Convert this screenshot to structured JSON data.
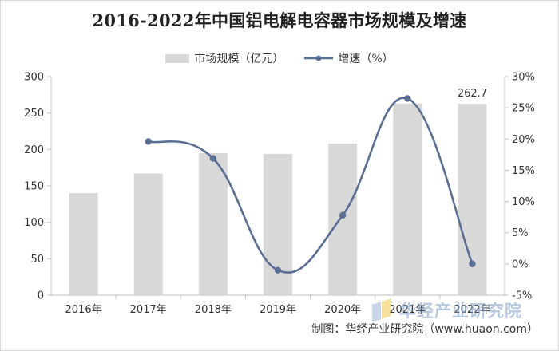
{
  "title": "2016-2022年中国铝电解电容器市场规模及增速",
  "legend": {
    "bar_label": "市场规模（亿元）",
    "line_label": "增速（%）"
  },
  "footer": "制图：华经产业研究院（www.huaon.com）",
  "watermark": "华经产业研究院",
  "colors": {
    "bar": "#d8d8d8",
    "line": "#5b6f95",
    "axis": "#bfbfbf",
    "text": "#333333"
  },
  "chart_data": {
    "type": "bar",
    "categories": [
      "2016年",
      "2017年",
      "2018年",
      "2019年",
      "2020年",
      "2021年",
      "2022年"
    ],
    "series": [
      {
        "name": "市场规模（亿元）",
        "type": "bar",
        "axis": "left",
        "values": [
          140,
          167,
          195,
          194,
          208,
          263,
          262.7
        ]
      },
      {
        "name": "增速（%）",
        "type": "line",
        "axis": "right",
        "values": [
          null,
          19.6,
          16.9,
          -1.0,
          7.8,
          26.5,
          0.0
        ]
      }
    ],
    "y_left": {
      "min": 0,
      "max": 300,
      "ticks": [
        0,
        50,
        100,
        150,
        200,
        250,
        300
      ]
    },
    "y_right": {
      "min": -5,
      "max": 30,
      "ticks": [
        "-5%",
        "0%",
        "5%",
        "10%",
        "15%",
        "20%",
        "25%",
        "30%"
      ]
    },
    "data_labels": [
      {
        "category": "2022年",
        "text": "262.7"
      }
    ],
    "grid": false,
    "legend_position": "top"
  }
}
